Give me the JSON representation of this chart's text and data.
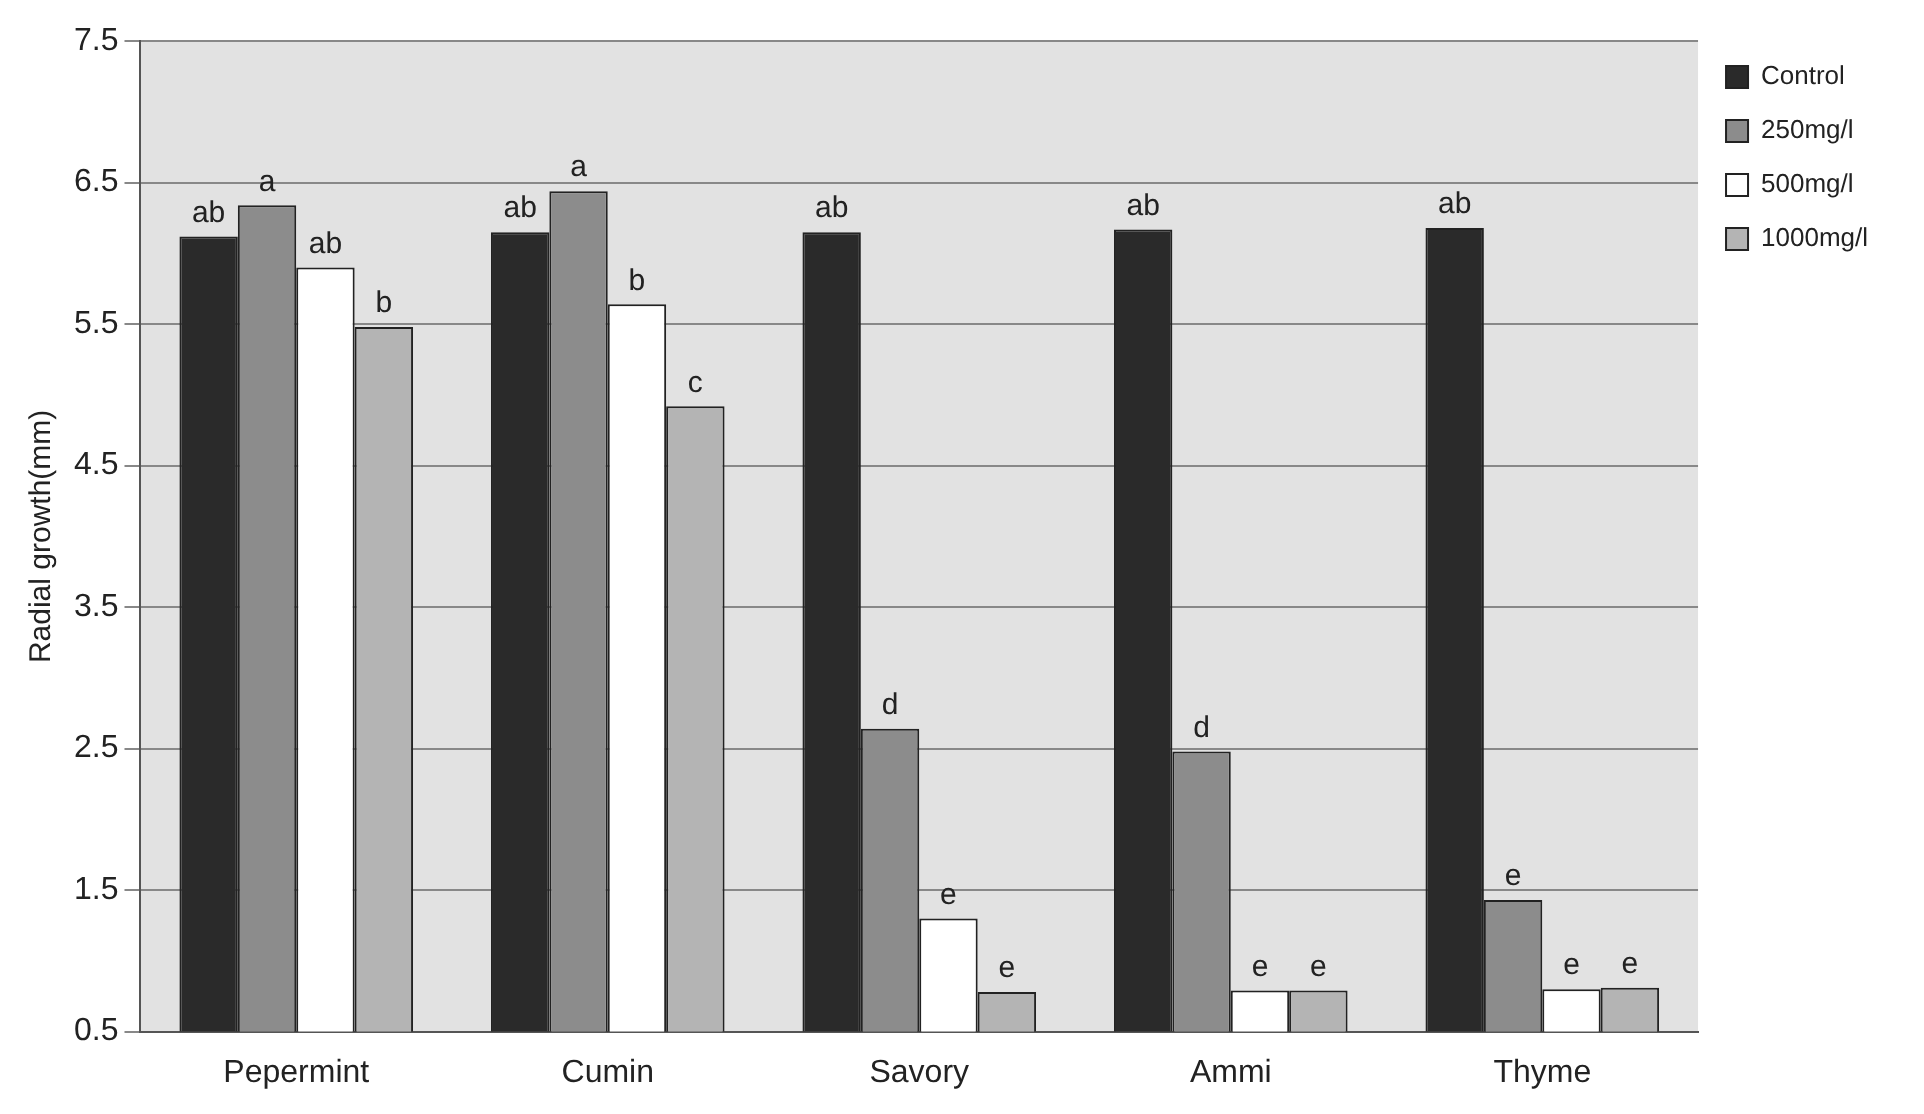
{
  "chart_data": {
    "type": "bar",
    "ylabel": "Radial growth(mm)",
    "categories": [
      "Pepermint",
      "Cumin",
      "Savory",
      "Ammi",
      "Thyme"
    ],
    "series": [
      {
        "name": "Control",
        "color": "#2a2a2a",
        "values": [
          6.12,
          6.15,
          6.15,
          6.17,
          6.18
        ],
        "value_labels": [
          "ab",
          "ab",
          "ab",
          "ab",
          "ab"
        ]
      },
      {
        "name": "250mg/l",
        "color": "#8c8c8c",
        "values": [
          6.34,
          6.44,
          2.64,
          2.48,
          1.43
        ],
        "value_labels": [
          "a",
          "a",
          "d",
          "d",
          "e"
        ]
      },
      {
        "name": "500mg/l",
        "color": "#ffffff",
        "values": [
          5.9,
          5.64,
          1.3,
          0.79,
          0.8
        ],
        "value_labels": [
          "ab",
          "b",
          "e",
          "e",
          "e"
        ]
      },
      {
        "name": "1000mg/l",
        "color": "#b4b4b4",
        "values": [
          5.48,
          4.92,
          0.78,
          0.79,
          0.81
        ],
        "value_labels": [
          "b",
          "c",
          "e",
          "e",
          "e"
        ]
      }
    ],
    "ylim": [
      0.5,
      7.5
    ],
    "yticks": [
      0.5,
      1.5,
      2.5,
      3.5,
      4.5,
      5.5,
      6.5,
      7.5
    ],
    "grid": "y",
    "legend": "top right"
  }
}
